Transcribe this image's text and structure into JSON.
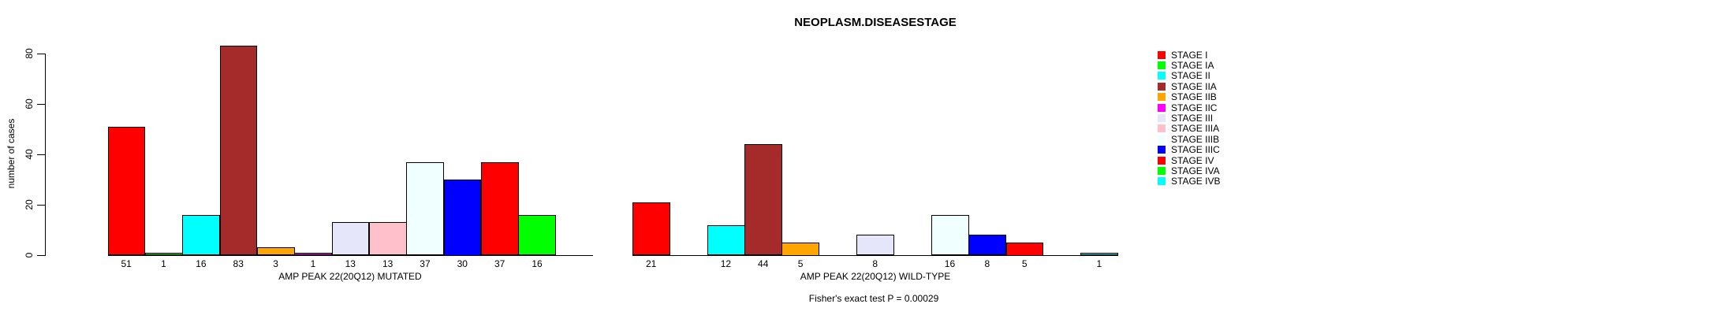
{
  "chart_data": {
    "type": "bar",
    "title": "NEOPLASM.DISEASESTAGE",
    "ylabel": "number of cases",
    "xlabel": "",
    "ylim": [
      0,
      80
    ],
    "yticks": [
      0,
      20,
      40,
      60,
      80
    ],
    "grid": false,
    "legend_position": "right",
    "bar_border_color": "#000000",
    "categories": [
      "STAGE I",
      "STAGE IA",
      "STAGE II",
      "STAGE IIA",
      "STAGE IIB",
      "STAGE IIC",
      "STAGE III",
      "STAGE IIIA",
      "STAGE IIIB",
      "STAGE IIIC",
      "STAGE IV",
      "STAGE IVA",
      "STAGE IVB"
    ],
    "colors": [
      "#FF0000",
      "#00FF00",
      "#00FFFF",
      "#A52A2A",
      "#FFA500",
      "#FF00FF",
      "#E6E6FA",
      "#FFC0CB",
      "#F0FFFF",
      "#0000FF",
      "#FF0000",
      "#00FF00",
      "#00FFFF"
    ],
    "groups": [
      {
        "label": "AMP PEAK 22(20Q12) MUTATED",
        "values": [
          51,
          1,
          16,
          83,
          3,
          1,
          13,
          13,
          37,
          30,
          37,
          16,
          0
        ]
      },
      {
        "label": "AMP PEAK 22(20Q12) WILD-TYPE",
        "values": [
          21,
          0,
          12,
          44,
          5,
          0,
          8,
          0,
          16,
          8,
          5,
          0,
          1
        ]
      }
    ],
    "value_labels": "shown under each nonzero bar",
    "annotation": "Fisher's exact test P = 0.00029"
  }
}
